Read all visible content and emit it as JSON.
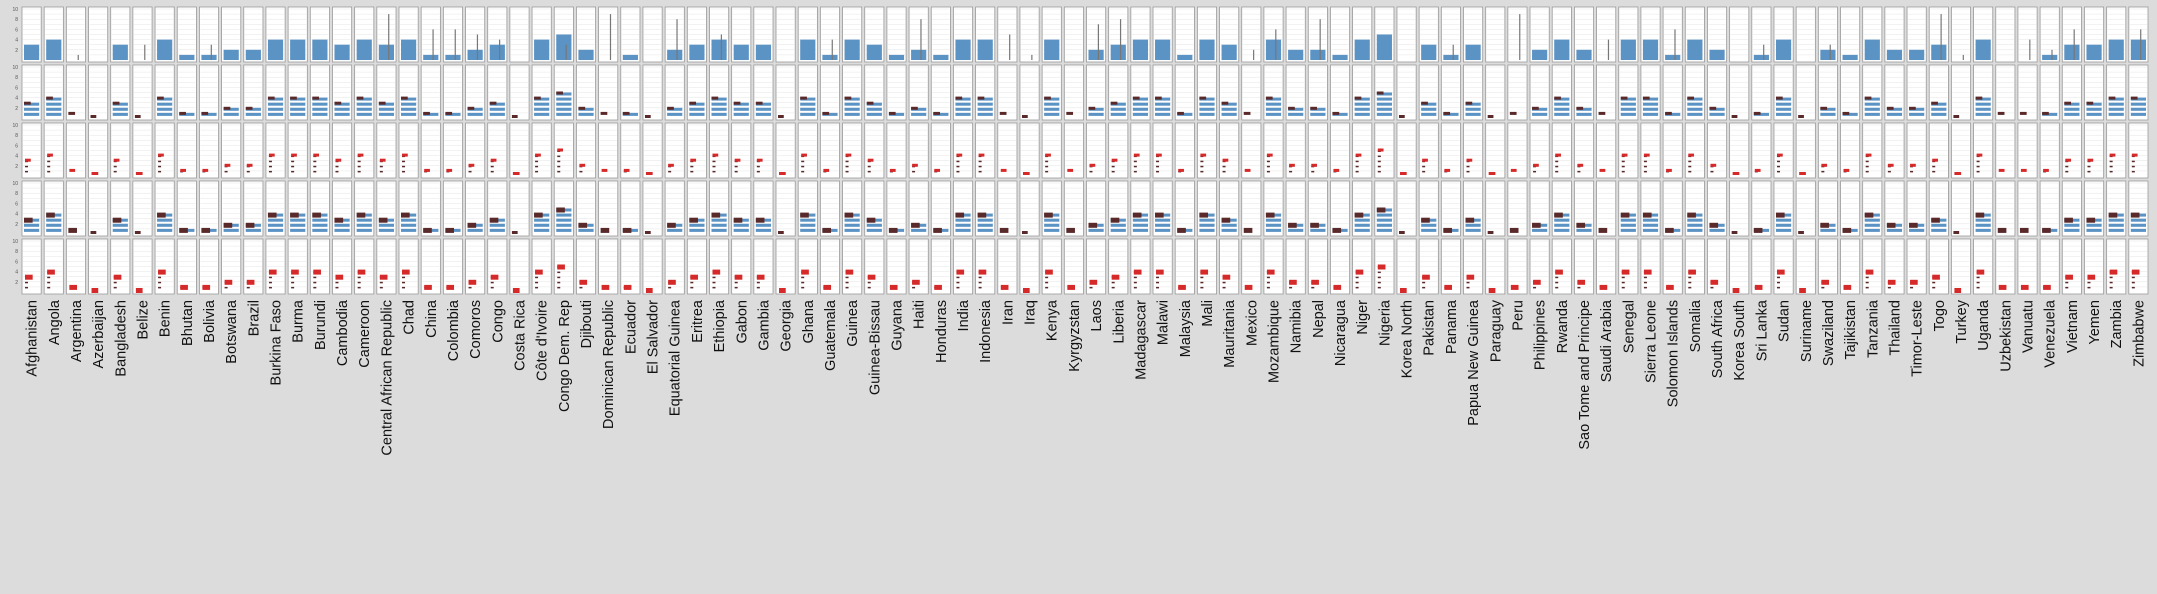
{
  "colors": {
    "background": "#dcdcdc",
    "panel": "#ffffff",
    "panel_border": "#9a9a9a",
    "bar_blue": "#5b93c4",
    "stripe_blue": "#5b93c4",
    "marker_dark": "#5a2a2a",
    "marker_red": "#d62a2a",
    "whisker": "#777777"
  },
  "chart_data": {
    "type": "bar",
    "layout": "small-multiples grid: one column per country, five stacked panel rows",
    "rows": [
      "bar",
      "stripe",
      "marker",
      "stripe-marker",
      "bar-marker"
    ],
    "ylim": [
      0,
      10
    ],
    "ticks": [
      1,
      2,
      3,
      4,
      5,
      6,
      7,
      8,
      9,
      10
    ],
    "grid": true,
    "categories": [
      "Afghanistan",
      "Angola",
      "Argentina",
      "Azerbaijan",
      "Bangladesh",
      "Belize",
      "Benin",
      "Bhutan",
      "Bolivia",
      "Botswana",
      "Brazil",
      "Burkina Faso",
      "Burma",
      "Burundi",
      "Cambodia",
      "Cameroon",
      "Central African Republic",
      "Chad",
      "China",
      "Colombia",
      "Comoros",
      "Congo",
      "Costa Rica",
      "Côte d'Ivoire",
      "Congo Dem. Rep",
      "Djibouti",
      "Dominican Republic",
      "Ecuador",
      "El Salvador",
      "Equatorial Guinea",
      "Eritrea",
      "Ethiopia",
      "Gabon",
      "Gambia",
      "Georgia",
      "Ghana",
      "Guatemala",
      "Guinea",
      "Guinea-Bissau",
      "Guyana",
      "Haiti",
      "Honduras",
      "India",
      "Indonesia",
      "Iran",
      "Iraq",
      "Kenya",
      "Kyrgyzstan",
      "Laos",
      "Liberia",
      "Madagascar",
      "Malawi",
      "Malaysia",
      "Mali",
      "Mauritania",
      "Mexico",
      "Mozambique",
      "Namibia",
      "Nepal",
      "Nicaragua",
      "Niger",
      "Nigeria",
      "Korea North",
      "Pakistan",
      "Panama",
      "Papua New Guinea",
      "Paraguay",
      "Peru",
      "Philippines",
      "Rwanda",
      "Sao Tome and Principe",
      "Saudi Arabia",
      "Senegal",
      "Sierra Leone",
      "Solomon Islands",
      "Somalia",
      "South Africa",
      "Korea South",
      "Sri Lanka",
      "Sudan",
      "Suriname",
      "Swaziland",
      "Tajikistan",
      "Tanzania",
      "Thailand",
      "Timor-Leste",
      "Togo",
      "Turkey",
      "Uganda",
      "Uzbekistan",
      "Vanuatu",
      "Venezuela",
      "Vietnam",
      "Yemen",
      "Zambia",
      "Zimbabwe"
    ],
    "values": [
      3,
      4,
      0,
      0,
      3,
      0,
      4,
      1,
      1,
      2,
      2,
      4,
      4,
      4,
      3,
      4,
      3,
      4,
      1,
      1,
      2,
      3,
      0,
      4,
      5,
      2,
      0,
      1,
      0,
      2,
      3,
      4,
      3,
      3,
      0,
      4,
      1,
      4,
      3,
      1,
      2,
      1,
      4,
      4,
      0,
      0,
      4,
      0,
      2,
      3,
      4,
      4,
      1,
      4,
      3,
      0,
      4,
      2,
      2,
      1,
      4,
      5,
      0,
      3,
      1,
      3,
      0,
      0,
      2,
      4,
      2,
      0,
      4,
      4,
      1,
      4,
      2,
      0,
      1,
      4,
      0,
      2,
      1,
      4,
      2,
      2,
      3,
      0,
      4,
      0,
      0,
      1,
      3,
      3,
      4,
      4
    ],
    "markers": [
      3,
      4,
      1,
      0,
      3,
      0,
      4,
      1,
      1,
      2,
      2,
      4,
      4,
      4,
      3,
      4,
      3,
      4,
      1,
      1,
      2,
      3,
      0,
      4,
      5,
      2,
      1,
      1,
      0,
      2,
      3,
      4,
      3,
      3,
      0,
      4,
      1,
      4,
      3,
      1,
      2,
      1,
      4,
      4,
      1,
      0,
      4,
      1,
      2,
      3,
      4,
      4,
      1,
      4,
      3,
      1,
      4,
      2,
      2,
      1,
      4,
      5,
      0,
      3,
      1,
      3,
      0,
      1,
      2,
      4,
      2,
      1,
      4,
      4,
      1,
      4,
      2,
      0,
      1,
      4,
      0,
      2,
      1,
      4,
      2,
      2,
      3,
      0,
      4,
      1,
      1,
      1,
      3,
      3,
      4,
      4
    ],
    "whiskers": [
      0,
      0,
      1,
      0,
      0,
      3,
      0,
      0,
      3,
      0,
      0,
      0,
      0,
      0,
      0,
      0,
      9,
      0,
      6,
      6,
      5,
      4,
      0,
      0,
      3,
      0,
      9,
      0,
      0,
      8,
      0,
      5,
      0,
      0,
      0,
      0,
      4,
      0,
      0,
      0,
      8,
      0,
      0,
      0,
      5,
      1,
      0,
      0,
      7,
      8,
      0,
      0,
      0,
      0,
      0,
      2,
      6,
      0,
      8,
      0,
      0,
      0,
      0,
      0,
      3,
      0,
      0,
      9,
      0,
      0,
      0,
      4,
      0,
      0,
      6,
      0,
      0,
      0,
      3,
      0,
      0,
      3,
      0,
      0,
      0,
      0,
      9,
      1,
      0,
      0,
      4,
      2,
      6,
      0,
      0,
      6
    ]
  }
}
